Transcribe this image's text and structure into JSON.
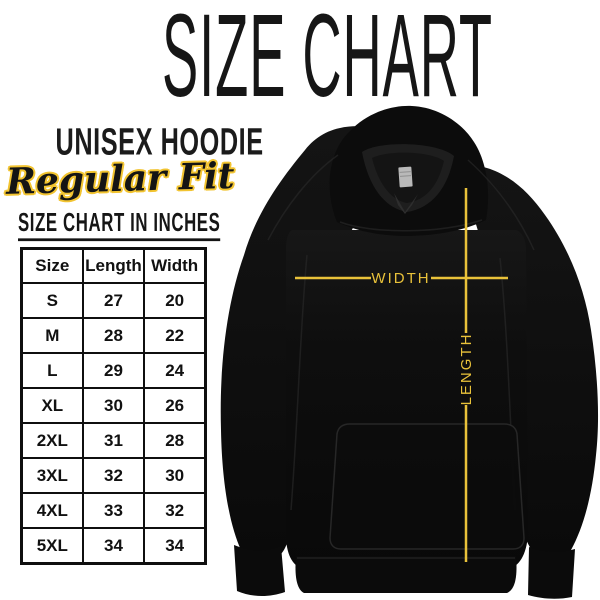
{
  "title": "SIZE CHART",
  "left_panel": {
    "product_name": "UNISEX HOODIE",
    "fit": "Regular Fit",
    "table_caption": "SIZE CHART IN INCHES",
    "table": {
      "headers": [
        "Size",
        "Length",
        "Width"
      ],
      "rows": [
        [
          "S",
          "27",
          "20"
        ],
        [
          "M",
          "28",
          "22"
        ],
        [
          "L",
          "29",
          "24"
        ],
        [
          "XL",
          "30",
          "26"
        ],
        [
          "2XL",
          "31",
          "28"
        ],
        [
          "3XL",
          "32",
          "30"
        ],
        [
          "4XL",
          "33",
          "32"
        ],
        [
          "5XL",
          "34",
          "34"
        ]
      ]
    }
  },
  "hoodie_diagram": {
    "width_label": "WIDTH",
    "length_label": "LENGTH"
  },
  "colors": {
    "accent_yellow": "#e9c23a",
    "script_outline_yellow": "#f2c431",
    "garment_black": "#0d0d0d",
    "text_black": "#141414",
    "background": "#ffffff"
  }
}
